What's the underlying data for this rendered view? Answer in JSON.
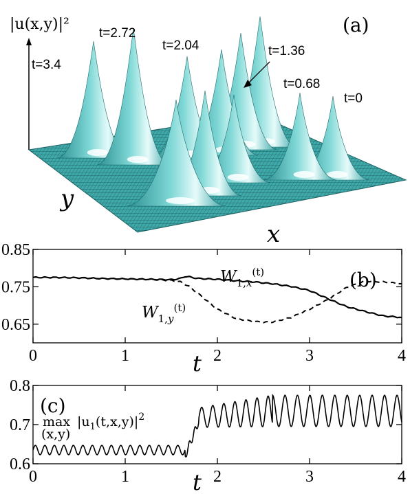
{
  "chart_data": [
    {
      "panel": "(a)",
      "type": "surface3d",
      "zlabel": "|u(x,y)|²",
      "xlabel": "x",
      "ylabel": "y",
      "annotations": [
        "t=3.4",
        "t=2.72",
        "t=2.04",
        "t=1.36",
        "t=0.68",
        "t=0"
      ],
      "peak_color": "#5cc8c8"
    },
    {
      "panel": "(b)",
      "type": "line",
      "xlabel": "t",
      "xlim": [
        0,
        4
      ],
      "ylim": [
        0.6,
        0.85
      ],
      "xticks": [
        "0",
        "1",
        "2",
        "3",
        "4"
      ],
      "yticks": [
        "0.65",
        "0.75",
        "0.85"
      ],
      "series": [
        {
          "name": "W_{1,x}(t)",
          "style": "solid",
          "x": [
            0,
            0.25,
            0.5,
            0.75,
            1.0,
            1.25,
            1.5,
            1.6,
            1.65,
            1.7,
            1.8,
            2.0,
            2.2,
            2.4,
            2.6,
            2.8,
            3.0,
            3.2,
            3.4,
            3.6,
            3.8,
            4.0
          ],
          "values": [
            0.775,
            0.775,
            0.774,
            0.772,
            0.771,
            0.77,
            0.769,
            0.772,
            0.778,
            0.776,
            0.772,
            0.77,
            0.766,
            0.763,
            0.758,
            0.751,
            0.74,
            0.718,
            0.697,
            0.684,
            0.672,
            0.668
          ]
        },
        {
          "name": "W_{1,y}(t)",
          "style": "dashed",
          "x": [
            0,
            0.25,
            0.5,
            0.75,
            1.0,
            1.25,
            1.5,
            1.6,
            1.7,
            1.8,
            1.9,
            2.0,
            2.2,
            2.4,
            2.5,
            2.6,
            2.8,
            3.0,
            3.2,
            3.4,
            3.6,
            3.8,
            4.0
          ],
          "values": [
            0.775,
            0.775,
            0.774,
            0.772,
            0.771,
            0.77,
            0.767,
            0.763,
            0.75,
            0.73,
            0.71,
            0.69,
            0.665,
            0.657,
            0.655,
            0.656,
            0.668,
            0.69,
            0.716,
            0.748,
            0.765,
            0.763,
            0.758
          ]
        }
      ],
      "annotations": [
        "(b)"
      ]
    },
    {
      "panel": "(c)",
      "type": "line",
      "xlabel": "t",
      "ylabel": "max |u₁(t,x,y)|² over (x,y)",
      "xlim": [
        0,
        4
      ],
      "ylim": [
        0.6,
        0.8
      ],
      "xticks": [
        "0",
        "1",
        "2",
        "3",
        "4"
      ],
      "yticks": [
        "0.6",
        "0.7",
        "0.8"
      ],
      "series": [
        {
          "name": "",
          "style": "solid",
          "segments": [
            {
              "t_start": 0.0,
              "t_end": 1.65,
              "mean": 0.635,
              "amplitude": 0.012,
              "period": 0.103
            },
            {
              "t_start": 1.65,
              "t_end": 1.8,
              "jump_from": 0.62,
              "jump_to": 0.71
            },
            {
              "t_start": 1.8,
              "t_end": 2.6,
              "mean": 0.718,
              "amplitude": 0.025,
              "period": 0.12
            },
            {
              "t_start": 2.6,
              "t_end": 4.0,
              "mean": 0.735,
              "amplitude": 0.04,
              "period": 0.135
            }
          ]
        }
      ],
      "annotations": [
        "(c)"
      ]
    }
  ]
}
